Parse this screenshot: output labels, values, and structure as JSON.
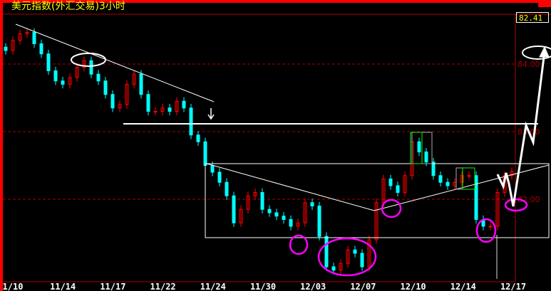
{
  "title": "美元指数(外汇交易)3小时",
  "last_price": "82.41",
  "colors": {
    "up": "#ff0000",
    "down": "#00ffff",
    "background": "#000000",
    "title": "#ffff00",
    "grid": "#aa0000"
  },
  "chart_data": {
    "type": "candlestick",
    "title": "美元指数(外汇交易)3小时",
    "x_ticks": [
      "1/10",
      "11/14",
      "11/17",
      "11/22",
      "11/24",
      "11/30",
      "12/03",
      "12/07",
      "12/10",
      "12/14",
      "12/17"
    ],
    "y_ticks": [
      "84.00",
      "83.00",
      "82.00"
    ],
    "ylim": [
      80.85,
      84.75
    ],
    "grid": "horizontal dashed",
    "close": [
      84.2,
      84.35,
      84.45,
      84.47,
      84.3,
      84.15,
      83.9,
      83.75,
      83.7,
      83.8,
      83.95,
      84.05,
      83.85,
      83.75,
      83.55,
      83.35,
      83.4,
      83.7,
      83.85,
      83.55,
      83.3,
      83.3,
      83.35,
      83.3,
      83.45,
      83.35,
      82.95,
      82.85,
      82.5,
      82.4,
      82.25,
      82.05,
      81.65,
      81.85,
      82.05,
      82.1,
      81.85,
      81.8,
      81.75,
      81.7,
      81.6,
      81.65,
      81.95,
      81.9,
      81.45,
      81.0,
      80.95,
      81.05,
      81.25,
      81.2,
      81.0,
      81.4,
      81.95,
      82.3,
      82.2,
      82.1,
      82.35,
      82.85,
      82.7,
      82.55,
      82.35,
      82.25,
      82.2,
      82.25,
      82.35,
      82.35,
      81.7,
      81.6,
      81.6,
      82.1,
      82.35,
      82.41
    ]
  }
}
